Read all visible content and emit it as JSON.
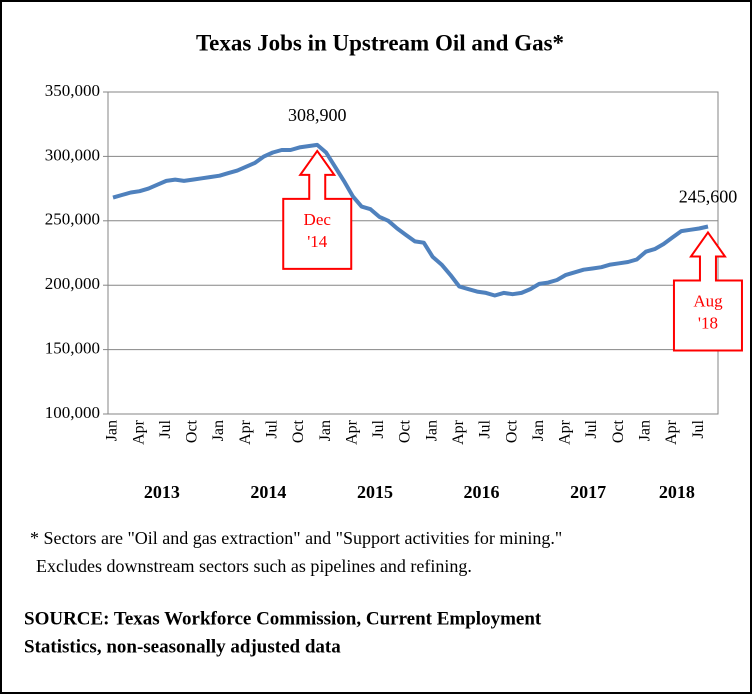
{
  "chart_data": {
    "type": "line",
    "title": "Texas Jobs in Upstream Oil and Gas*",
    "categories": [
      "Jan",
      null,
      null,
      "Apr",
      null,
      null,
      "Jul",
      null,
      null,
      "Oct",
      null,
      null,
      "Jan",
      null,
      null,
      "Apr",
      null,
      null,
      "Jul",
      null,
      null,
      "Oct",
      null,
      null,
      "Jan",
      null,
      null,
      "Apr",
      null,
      null,
      "Jul",
      null,
      null,
      "Oct",
      null,
      null,
      "Jan",
      null,
      null,
      "Apr",
      null,
      null,
      "Jul",
      null,
      null,
      "Oct",
      null,
      null,
      "Jan",
      null,
      null,
      "Apr",
      null,
      null,
      "Jul",
      null,
      null,
      "Oct",
      null,
      null,
      "Jan",
      null,
      null,
      "Apr",
      null,
      null,
      "Jul",
      null
    ],
    "years": [
      "2013",
      "2014",
      "2015",
      "2016",
      "2017",
      "2018"
    ],
    "values": [
      268000,
      270000,
      272000,
      273000,
      275000,
      278000,
      281000,
      282000,
      281000,
      282000,
      283000,
      284000,
      285000,
      287000,
      289000,
      292000,
      295000,
      300000,
      303000,
      305000,
      305000,
      307000,
      308000,
      308900,
      303000,
      292000,
      281000,
      269000,
      261000,
      259000,
      253000,
      250000,
      244000,
      239000,
      234000,
      233000,
      222000,
      216000,
      208000,
      199000,
      197000,
      195000,
      194000,
      192000,
      194000,
      193000,
      194000,
      197000,
      201000,
      202000,
      204000,
      208000,
      210000,
      212000,
      213000,
      214000,
      216000,
      217000,
      218000,
      220000,
      226000,
      228000,
      232000,
      237000,
      242000,
      243000,
      244000,
      245600
    ],
    "value_labels": [
      null,
      null,
      null,
      null,
      null,
      null,
      null,
      null,
      null,
      null,
      null,
      null,
      null,
      null,
      null,
      null,
      null,
      null,
      null,
      null,
      null,
      null,
      null,
      "308,900",
      null,
      null,
      null,
      null,
      null,
      null,
      null,
      null,
      null,
      null,
      null,
      null,
      null,
      null,
      null,
      null,
      null,
      null,
      null,
      null,
      null,
      null,
      null,
      null,
      null,
      null,
      null,
      null,
      null,
      null,
      null,
      null,
      null,
      null,
      null,
      null,
      null,
      null,
      null,
      null,
      null,
      null,
      null,
      "245,600"
    ],
    "color": "#4f81bd",
    "callouts": [
      {
        "lines": [
          "Dec",
          "'14"
        ]
      },
      {
        "lines": [
          "Aug",
          "'18"
        ]
      }
    ],
    "callout_color": "#ff0000",
    "ylim": [
      100000,
      350000
    ],
    "yticks": [
      {
        "value": 100000,
        "label": "100,000"
      },
      {
        "value": 150000,
        "label": "150,000"
      },
      {
        "value": 200000,
        "label": "200,000"
      },
      {
        "value": 250000,
        "label": "250,000"
      },
      {
        "value": 300000,
        "label": "300,000"
      },
      {
        "value": 350000,
        "label": "350,000"
      }
    ],
    "grid": true,
    "footnote": [
      "* Sectors are \"Oil and gas extraction\" and \"Support activities for mining.\"",
      "Excludes downstream sectors such as pipelines and refining."
    ],
    "source": [
      "SOURCE: Texas Workforce Commission, Current Employment",
      "Statistics, non-seasonally adjusted data"
    ]
  }
}
